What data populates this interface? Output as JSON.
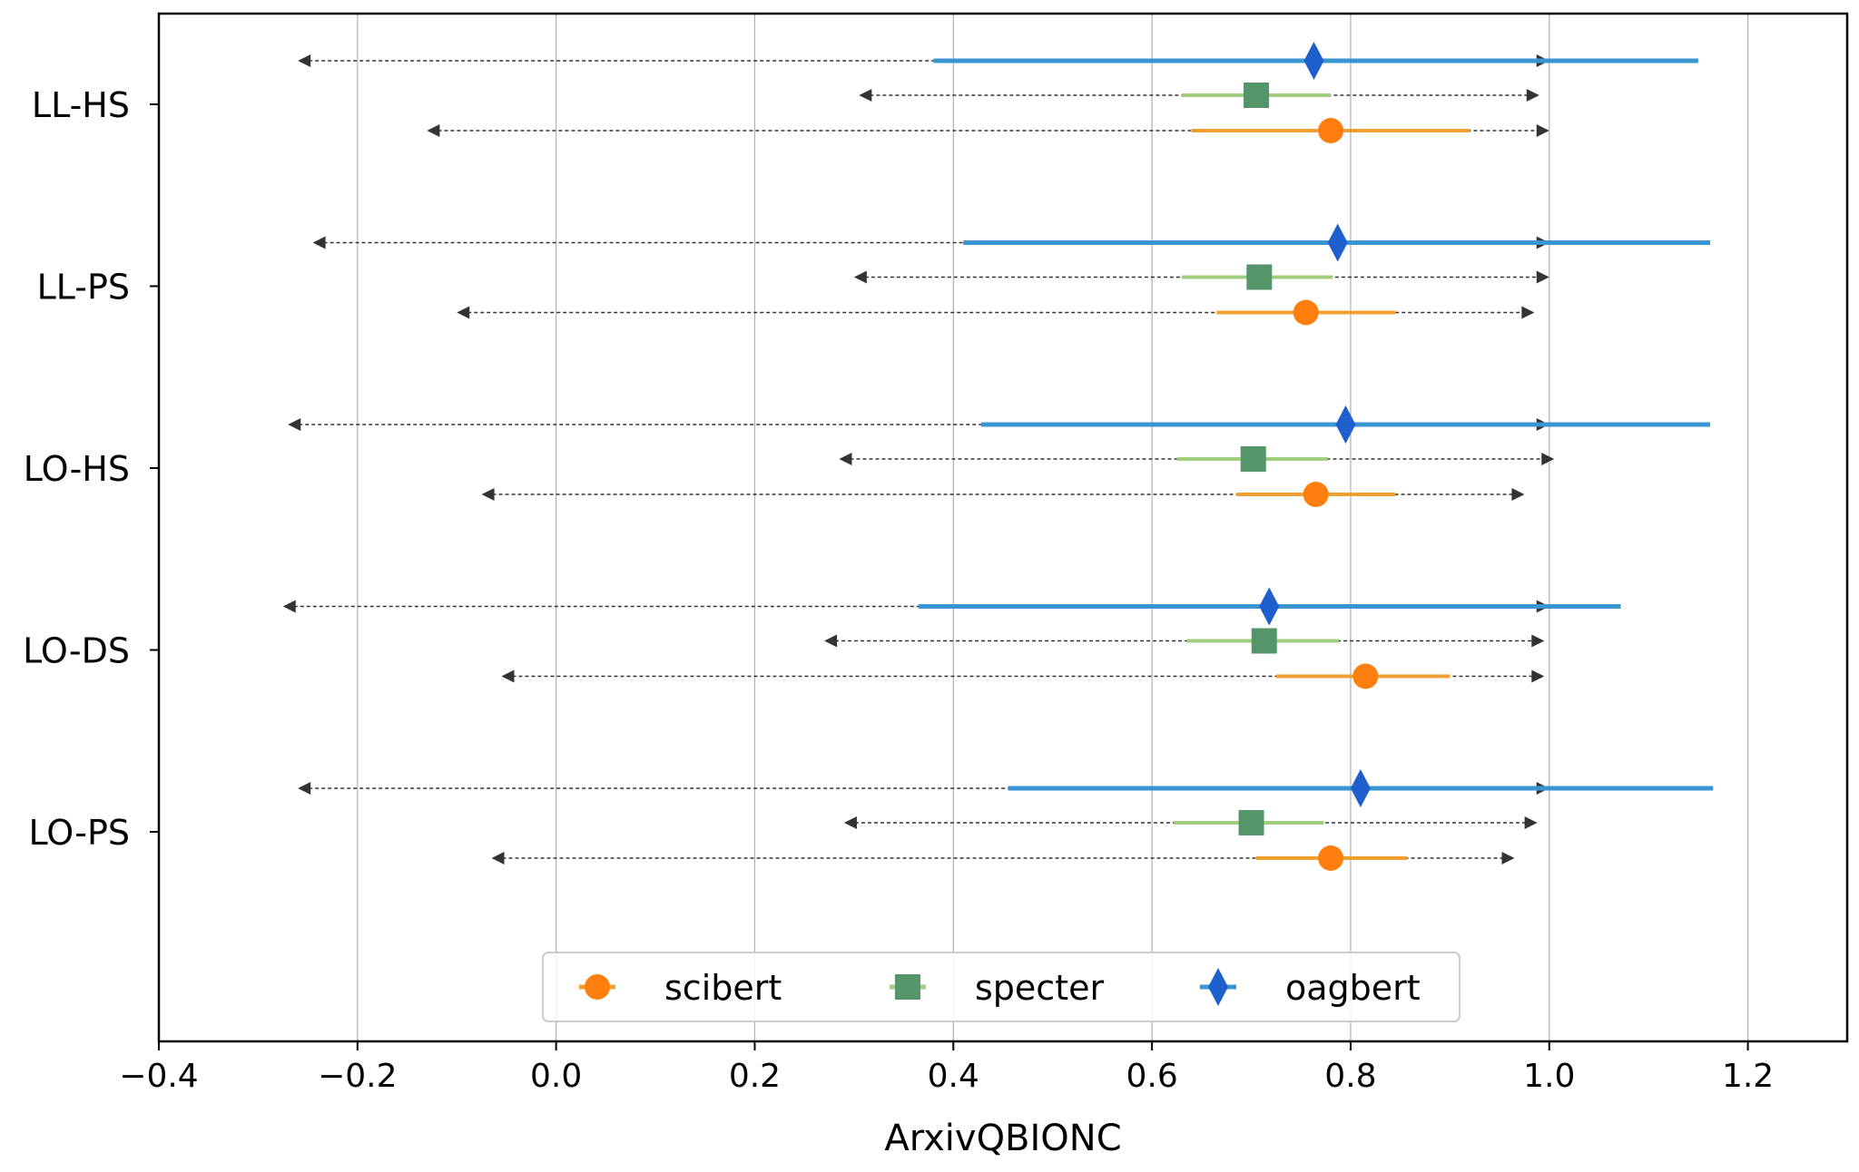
{
  "chart_data": {
    "type": "scatter",
    "xlabel": "ArxivQBIONC",
    "ylabel": "",
    "title": "",
    "xlim": [
      -0.4,
      1.3
    ],
    "xticks": [
      -0.4,
      -0.2,
      0.0,
      0.2,
      0.4,
      0.6,
      0.8,
      1.0,
      1.2
    ],
    "xtick_labels": [
      "−0.4",
      "−0.2",
      "0.0",
      "0.2",
      "0.4",
      "0.6",
      "0.8",
      "1.0",
      "1.2"
    ],
    "grid": "vertical",
    "legend_position": "bottom-center",
    "categories": [
      "LL-HS",
      "LL-PS",
      "LO-HS",
      "LO-DS",
      "LO-PS"
    ],
    "series": [
      {
        "name": "scibert",
        "color": "#ff7f0e",
        "ci_color": "#f0a030",
        "marker": "circle",
        "points": [
          {
            "value": 0.78,
            "ci": [
              0.64,
              0.92
            ],
            "range": [
              -0.13,
              1.0
            ]
          },
          {
            "value": 0.755,
            "ci": [
              0.665,
              0.845
            ],
            "range": [
              -0.1,
              0.985
            ]
          },
          {
            "value": 0.765,
            "ci": [
              0.685,
              0.845
            ],
            "range": [
              -0.075,
              0.975
            ]
          },
          {
            "value": 0.815,
            "ci": [
              0.725,
              0.9
            ],
            "range": [
              -0.055,
              0.995
            ]
          },
          {
            "value": 0.78,
            "ci": [
              0.705,
              0.857
            ],
            "range": [
              -0.065,
              0.965
            ]
          }
        ]
      },
      {
        "name": "specter",
        "color": "#55956a",
        "ci_color": "#9fce7c",
        "marker": "square",
        "points": [
          {
            "value": 0.705,
            "ci": [
              0.63,
              0.78
            ],
            "range": [
              0.305,
              0.99
            ]
          },
          {
            "value": 0.708,
            "ci": [
              0.63,
              0.782
            ],
            "range": [
              0.3,
              1.0
            ]
          },
          {
            "value": 0.702,
            "ci": [
              0.625,
              0.777
            ],
            "range": [
              0.285,
              1.005
            ]
          },
          {
            "value": 0.713,
            "ci": [
              0.635,
              0.788
            ],
            "range": [
              0.27,
              0.995
            ]
          },
          {
            "value": 0.7,
            "ci": [
              0.622,
              0.773
            ],
            "range": [
              0.29,
              0.988
            ]
          }
        ]
      },
      {
        "name": "oagbert",
        "color": "#1f5fcc",
        "ci_color": "#3a96d0",
        "marker": "diamond",
        "points": [
          {
            "value": 0.763,
            "ci": [
              0.38,
              1.15
            ],
            "range": [
              -0.26,
              1.0
            ]
          },
          {
            "value": 0.787,
            "ci": [
              0.41,
              1.162
            ],
            "range": [
              -0.245,
              1.0
            ]
          },
          {
            "value": 0.795,
            "ci": [
              0.428,
              1.162
            ],
            "range": [
              -0.27,
              1.0
            ]
          },
          {
            "value": 0.718,
            "ci": [
              0.365,
              1.072
            ],
            "range": [
              -0.275,
              1.0
            ]
          },
          {
            "value": 0.81,
            "ci": [
              0.455,
              1.165
            ],
            "range": [
              -0.26,
              1.0
            ]
          }
        ]
      }
    ]
  }
}
